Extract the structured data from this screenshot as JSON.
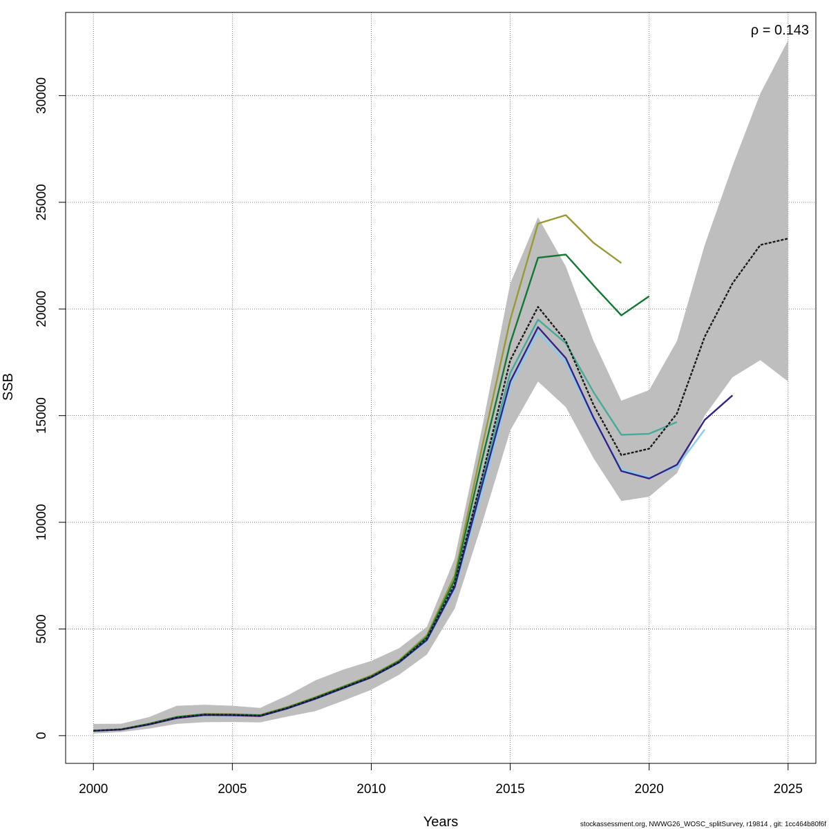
{
  "chart_data": {
    "type": "line",
    "xlabel": "Years",
    "ylabel": "SSB",
    "xlim": [
      1999,
      2026
    ],
    "ylim": [
      -1300,
      33900
    ],
    "x_ticks": [
      2000,
      2005,
      2010,
      2015,
      2020,
      2025
    ],
    "y_ticks": [
      0,
      5000,
      10000,
      15000,
      20000,
      25000,
      30000
    ],
    "grid": true,
    "annotation": {
      "symbol": "ρ",
      "text": " = 0.143"
    },
    "footer": "stockassessment.org, NWWG26_WOSC_splitSurvey, r19814 , git: 1cc464b80f6f",
    "confidence_band": {
      "color": "#bebebe",
      "x": [
        2000,
        2001,
        2002,
        2003,
        2004,
        2005,
        2006,
        2007,
        2008,
        2009,
        2010,
        2011,
        2012,
        2013,
        2014,
        2015,
        2016,
        2017,
        2018,
        2019,
        2020,
        2021,
        2022,
        2023,
        2024,
        2025
      ],
      "upper": [
        550,
        560,
        870,
        1400,
        1450,
        1400,
        1300,
        1900,
        2600,
        3100,
        3500,
        4100,
        5100,
        8300,
        14500,
        21200,
        24300,
        22000,
        18500,
        15700,
        16200,
        18500,
        23000,
        26700,
        30100,
        32600
      ],
      "lower": [
        100,
        170,
        330,
        550,
        630,
        640,
        620,
        900,
        1150,
        1640,
        2150,
        2850,
        3800,
        5950,
        10000,
        14300,
        16600,
        15400,
        13000,
        11000,
        11200,
        12300,
        15000,
        16800,
        17600,
        16600
      ]
    },
    "series": [
      {
        "color": "#1a1a1a",
        "dashed": true,
        "x": [
          2000,
          2001,
          2002,
          2003,
          2004,
          2005,
          2006,
          2007,
          2008,
          2009,
          2010,
          2011,
          2012,
          2013,
          2014,
          2015,
          2016,
          2017,
          2018,
          2019,
          2020,
          2021,
          2022,
          2023,
          2024,
          2025
        ],
        "values": [
          230,
          290,
          530,
          840,
          980,
          970,
          930,
          1300,
          1750,
          2250,
          2750,
          3450,
          4550,
          7100,
          12200,
          17600,
          20100,
          18500,
          15500,
          13150,
          13450,
          15100,
          18700,
          21200,
          23000,
          23300
        ]
      },
      {
        "color": "#999933",
        "x": [
          2000,
          2001,
          2002,
          2003,
          2004,
          2005,
          2006,
          2007,
          2008,
          2009,
          2010,
          2011,
          2012,
          2013,
          2014,
          2015,
          2016,
          2017,
          2018,
          2019
        ],
        "values": [
          240,
          300,
          560,
          880,
          1020,
          1010,
          970,
          1350,
          1810,
          2310,
          2820,
          3530,
          4700,
          7500,
          13600,
          19500,
          24000,
          24400,
          23100,
          22150
        ]
      },
      {
        "color": "#117733",
        "x": [
          2000,
          2001,
          2002,
          2003,
          2004,
          2005,
          2006,
          2007,
          2008,
          2009,
          2010,
          2011,
          2012,
          2013,
          2014,
          2015,
          2016,
          2017,
          2018,
          2019,
          2020
        ],
        "values": [
          235,
          295,
          550,
          870,
          1000,
          990,
          950,
          1320,
          1780,
          2280,
          2780,
          3490,
          4620,
          7300,
          13000,
          18400,
          22400,
          22550,
          21100,
          19700,
          20600
        ]
      },
      {
        "color": "#44aa99",
        "x": [
          2000,
          2001,
          2002,
          2003,
          2004,
          2005,
          2006,
          2007,
          2008,
          2009,
          2010,
          2011,
          2012,
          2013,
          2014,
          2015,
          2016,
          2017,
          2018,
          2019,
          2020,
          2021
        ],
        "values": [
          228,
          288,
          525,
          830,
          970,
          960,
          920,
          1290,
          1740,
          2240,
          2740,
          3440,
          4520,
          7050,
          12100,
          17000,
          19500,
          18400,
          16100,
          14100,
          14150,
          14700
        ]
      },
      {
        "color": "#332288",
        "x": [
          2000,
          2001,
          2002,
          2003,
          2004,
          2005,
          2006,
          2007,
          2008,
          2009,
          2010,
          2011,
          2012,
          2013,
          2014,
          2015,
          2016,
          2017,
          2018,
          2019,
          2020,
          2021,
          2022,
          2023
        ],
        "values": [
          225,
          285,
          520,
          825,
          965,
          955,
          915,
          1280,
          1730,
          2230,
          2730,
          3430,
          4480,
          6950,
          11800,
          16600,
          19150,
          17700,
          14900,
          12400,
          12050,
          12700,
          14800,
          15950
        ]
      },
      {
        "color": "#88ccee",
        "x": [
          2000,
          2001,
          2002,
          2003,
          2004,
          2005,
          2006,
          2007,
          2008,
          2009,
          2010,
          2011,
          2012,
          2013,
          2014,
          2015,
          2016,
          2017,
          2018,
          2019,
          2020,
          2021,
          2022
        ],
        "values": [
          222,
          282,
          515,
          820,
          960,
          950,
          910,
          1270,
          1720,
          2220,
          2720,
          3410,
          4430,
          6850,
          11500,
          16400,
          18900,
          17500,
          14800,
          12500,
          12100,
          12600,
          14350
        ]
      }
    ]
  }
}
